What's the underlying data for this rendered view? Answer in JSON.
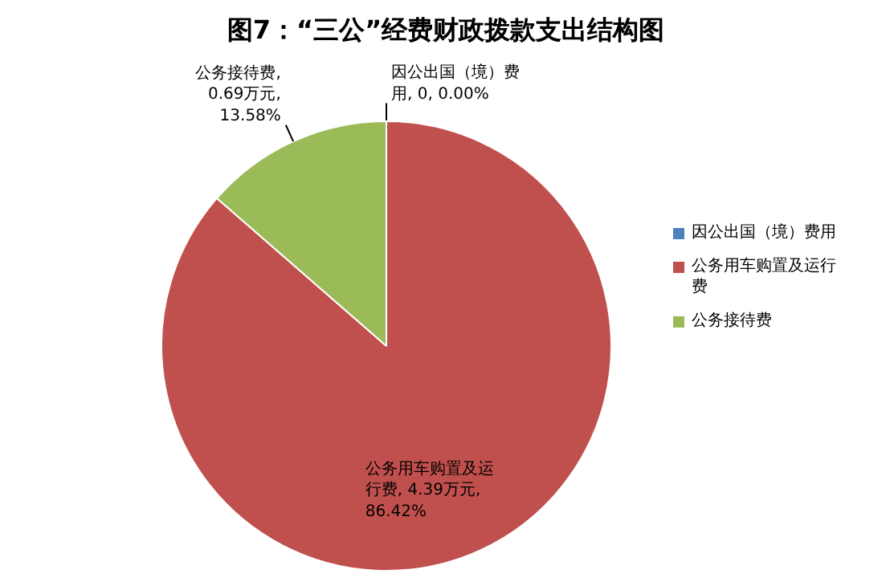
{
  "chart_data": {
    "type": "pie",
    "title": "图7：“三公”经费财政拨款支出结构图",
    "categories": [
      "因公出国（境）费用",
      "公务用车购置及运行费",
      "公务接待费"
    ],
    "values": [
      0,
      4.39,
      0.69
    ],
    "colors": [
      "#4f81bd",
      "#c0504d",
      "#9bbb59"
    ],
    "value_labels": [
      "因公出国（境）费用, 0, 0.00%",
      "公务用车购置及运行费, 4.39万元, 86.42%",
      "公务接待费, 0.69万元, 13.58%"
    ],
    "legend": "right"
  }
}
